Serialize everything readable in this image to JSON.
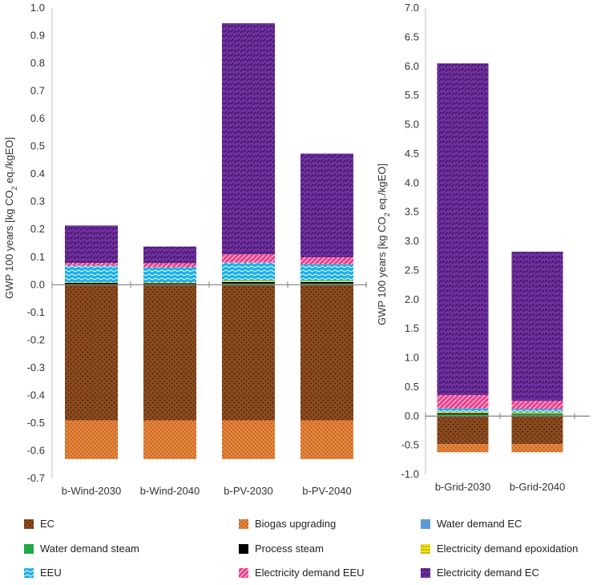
{
  "chart_data": [
    {
      "type": "bar",
      "stacked": true,
      "ylabel": "GWP 100 years [kg CO2 eq./kgEO]",
      "ylabel_parts": {
        "main": "GWP 100 years [kg CO",
        "sub": "2",
        "tail": " eq./kgEO]"
      },
      "ylim": [
        -0.7,
        1.0
      ],
      "ystep": 0.1,
      "ytick_labels": [
        "1.0",
        "0.9",
        "0.8",
        "0.7",
        "0.6",
        "0.5",
        "0.4",
        "0.3",
        "0.2",
        "0.1",
        "0.0",
        "-0.1",
        "-0.2",
        "-0.3",
        "-0.4",
        "-0.5",
        "-0.6",
        "-0.7"
      ],
      "categories": [
        "b-Wind-2030",
        "b-Wind-2040",
        "b-PV-2030",
        "b-PV-2040"
      ],
      "series": [
        {
          "name": "EC",
          "values": [
            -0.49,
            -0.49,
            -0.49,
            -0.49
          ]
        },
        {
          "name": "Biogas upgrading",
          "values": [
            -0.14,
            -0.14,
            -0.14,
            -0.14
          ]
        },
        {
          "name": "Water demand EC",
          "values": [
            0.001,
            0.001,
            0.002,
            0.002
          ]
        },
        {
          "name": "Water demand steam",
          "values": [
            0.001,
            0.001,
            0.002,
            0.002
          ]
        },
        {
          "name": "Process steam",
          "values": [
            0.005,
            0.004,
            0.006,
            0.006
          ]
        },
        {
          "name": "Electricity demand epoxidation",
          "values": [
            0.002,
            0.002,
            0.005,
            0.004
          ]
        },
        {
          "name": "EEU",
          "values": [
            0.06,
            0.055,
            0.065,
            0.06
          ]
        },
        {
          "name": "Electricity demand EEU",
          "values": [
            0.01,
            0.015,
            0.03,
            0.025
          ]
        },
        {
          "name": "Electricity demand EC",
          "values": [
            0.135,
            0.06,
            0.835,
            0.375
          ]
        }
      ]
    },
    {
      "type": "bar",
      "stacked": true,
      "ylabel": "GWP 100 years [kg CO2 eq./kgEO]",
      "ylabel_parts": {
        "main": "GWP 100 years [kg CO",
        "sub": "2",
        "tail": " eq./kgEO]"
      },
      "ylim": [
        -1.0,
        7.0
      ],
      "ystep": 0.5,
      "ytick_labels": [
        "7.0",
        "6.5",
        "6.0",
        "5.5",
        "5.0",
        "4.5",
        "4.0",
        "3.5",
        "3.0",
        "2.5",
        "2.0",
        "1.5",
        "1.0",
        "0.5",
        "0.0",
        "-0.5",
        "-1.0"
      ],
      "categories": [
        "b-Grid-2030",
        "b-Grid-2040"
      ],
      "series": [
        {
          "name": "EC",
          "values": [
            -0.48,
            -0.48
          ]
        },
        {
          "name": "Biogas upgrading",
          "values": [
            -0.14,
            -0.14
          ]
        },
        {
          "name": "Water demand EC",
          "values": [
            0.01,
            0.01
          ]
        },
        {
          "name": "Water demand steam",
          "values": [
            0.02,
            0.02
          ]
        },
        {
          "name": "Process steam",
          "values": [
            0.02,
            0.01
          ]
        },
        {
          "name": "Electricity demand epoxidation",
          "values": [
            0.02,
            0.02
          ]
        },
        {
          "name": "EEU",
          "values": [
            0.06,
            0.06
          ]
        },
        {
          "name": "Electricity demand EEU",
          "values": [
            0.23,
            0.14
          ]
        },
        {
          "name": "Electricity demand EC",
          "values": [
            5.69,
            2.56
          ]
        }
      ]
    }
  ],
  "legend": {
    "items": [
      {
        "name": "EC",
        "color": "#8B4A1E"
      },
      {
        "name": "Biogas upgrading",
        "color": "#E6843B"
      },
      {
        "name": "Water demand EC",
        "color": "#5B9BD5"
      },
      {
        "name": "Water demand steam",
        "color": "#1FA843"
      },
      {
        "name": "Process steam",
        "color": "#000000"
      },
      {
        "name": "Electricity demand epoxidation",
        "color": "#F2E21B"
      },
      {
        "name": "EEU",
        "color": "#1AAFE6"
      },
      {
        "name": "Electricity demand EEU",
        "color": "#F0408E"
      },
      {
        "name": "Electricity demand EC",
        "color": "#7030A0"
      }
    ]
  },
  "colors": {
    "EC": "#8B4A1E",
    "Biogas upgrading": "#E6843B",
    "Water demand EC": "#5B9BD5",
    "Water demand steam": "#1FA843",
    "Process steam": "#000000",
    "Electricity demand epoxidation": "#F2E21B",
    "EEU": "#1AAFE6",
    "Electricity demand EEU": "#F0408E",
    "Electricity demand EC": "#7030A0"
  }
}
